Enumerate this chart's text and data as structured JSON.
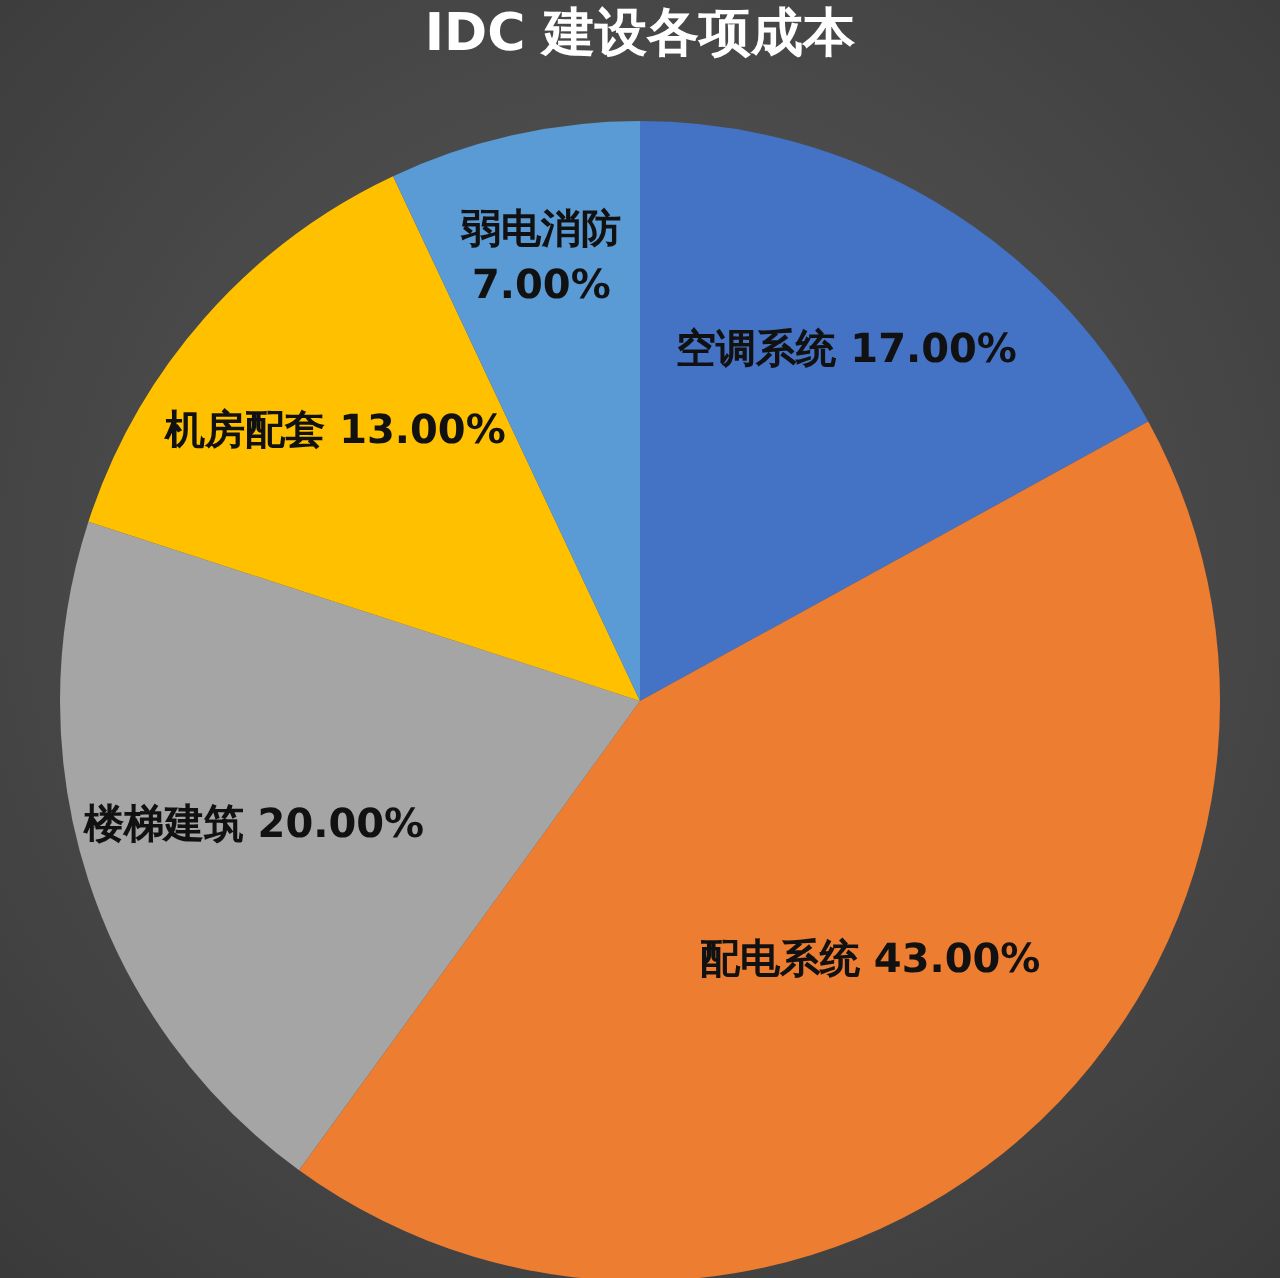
{
  "chart_data": {
    "type": "pie",
    "title": "IDC 建设各项成本",
    "categories": [
      "空调系统",
      "配电系统",
      "楼梯建筑",
      "机房配套",
      "弱电消防"
    ],
    "values": [
      17,
      43,
      20,
      13,
      7
    ],
    "value_labels": [
      "17.00%",
      "43.00%",
      "20.00%",
      "13.00%",
      "7.00%"
    ],
    "colors": [
      "#4472c4",
      "#ed7d31",
      "#a5a5a5",
      "#ffc000",
      "#5b9bd5"
    ],
    "legend": false
  }
}
